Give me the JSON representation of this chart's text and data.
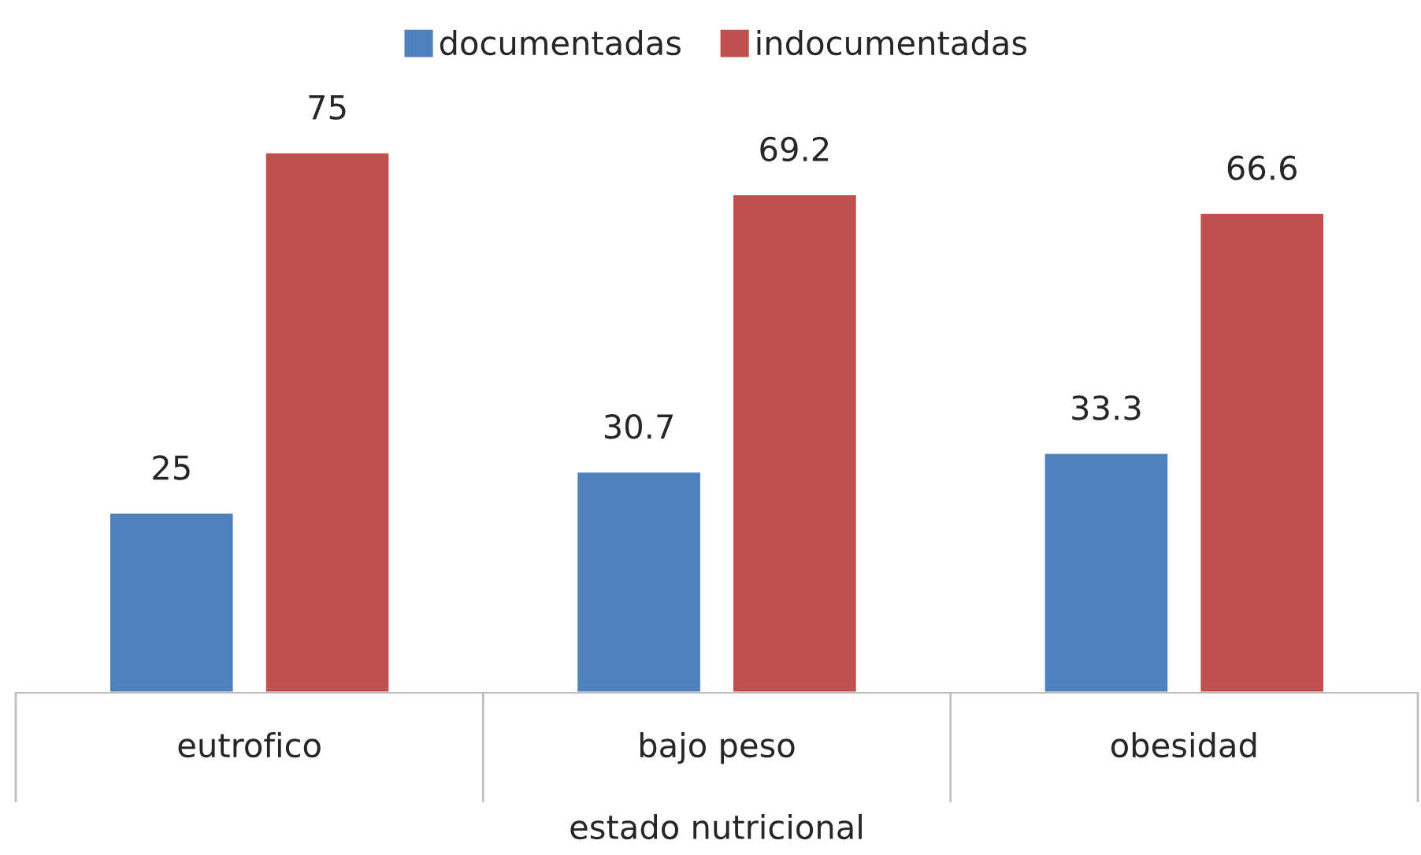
{
  "chart_data": {
    "type": "bar",
    "xlabel": "estado nutricional",
    "categories": [
      "eutrofico",
      "bajo peso",
      "obesidad"
    ],
    "series": [
      {
        "name": "documentadas",
        "color": "#4f81bd",
        "values": [
          25,
          30.7,
          33.3
        ]
      },
      {
        "name": "indocumentadas",
        "color": "#c0504d",
        "values": [
          75,
          69.2,
          66.6
        ]
      }
    ],
    "tick_labels": "x",
    "data_labels": true,
    "grid": false,
    "legend": "top"
  }
}
